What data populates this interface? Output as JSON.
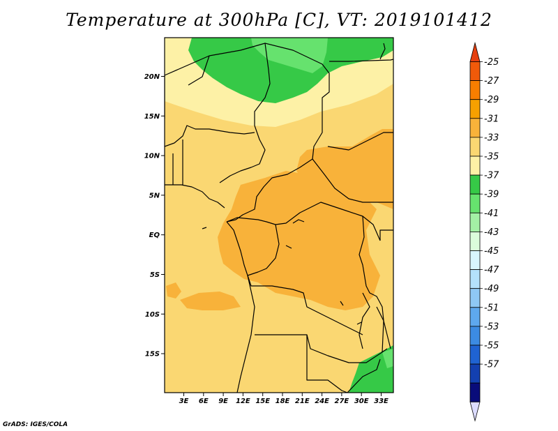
{
  "title": "Temperature at 300hPa [C], VT: 2019101412",
  "credit": "GrADS: IGES/COLA",
  "lat_labels": [
    "20N",
    "15N",
    "10N",
    "5N",
    "EQ",
    "5S",
    "10S",
    "15S"
  ],
  "lon_labels": [
    "3E",
    "6E",
    "9E",
    "12E",
    "15E",
    "18E",
    "21E",
    "24E",
    "27E",
    "30E",
    "33E"
  ],
  "colorbar": {
    "labels": [
      "-25",
      "-27",
      "-29",
      "-31",
      "-33",
      "-35",
      "-37",
      "-39",
      "-41",
      "-43",
      "-45",
      "-47",
      "-49",
      "-51",
      "-53",
      "-55",
      "-57"
    ],
    "colors": [
      "#f05a0a",
      "#f87e00",
      "#f6a000",
      "#f8b23a",
      "#fad772",
      "#fdf1a6",
      "#36c947",
      "#66e26e",
      "#a3f0a5",
      "#dbfcdb",
      "#d8f6fe",
      "#b4e1fb",
      "#8fc8f5",
      "#5ea8ee",
      "#3c8be2",
      "#1f63d2",
      "#1340b0",
      "#090c7a"
    ],
    "top_arrow_color": "#e64010",
    "bottom_arrow_color": "#dcdcff"
  },
  "map_colors": {
    "c31": "#fad772",
    "c29": "#f8b23a",
    "c33": "#fdf1a6",
    "c37": "#36c947",
    "c39": "#66e26e",
    "border": "#000000"
  }
}
